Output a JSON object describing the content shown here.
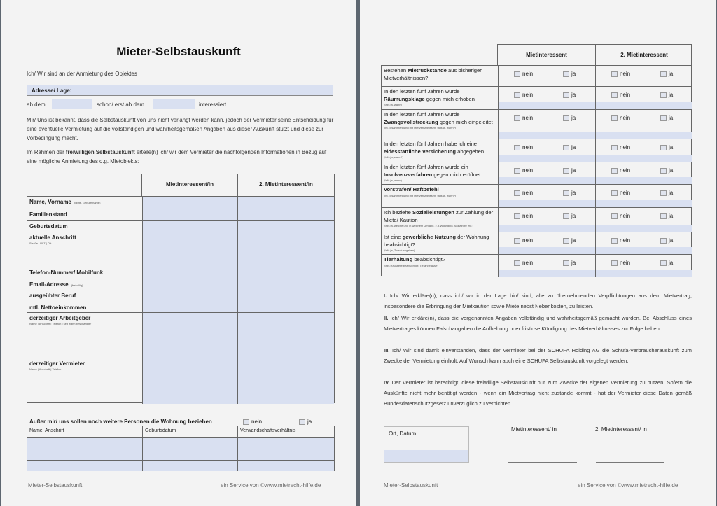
{
  "left": {
    "title": "Mieter-Selbstauskunft",
    "intro": "Ich/ Wir sind an der Anmietung des Objektes",
    "address_label": "Adresse/ Lage:",
    "from_label": "ab dem",
    "already_label": "schon/ erst ab dem",
    "interested_label": "interessiert.",
    "para1": "Mir/ Uns ist bekannt, dass die Selbstauskunft von uns nicht verlangt werden kann, jedoch der Vermieter seine Entscheidung für eine eventuelle Vermietung auf die vollständigen und wahrheitsgemäßen Angaben aus dieser Auskunft stützt und diese zur Vorbedingung macht.",
    "para2_a": "Im Rahmen der ",
    "para2_bold": "freiwilligen Selbstauskunft",
    "para2_b": " erteile(n) ich/ wir dem Vermieter die nachfolgenden Informationen in Bezug auf eine mögliche Anmietung des o.g. Mietobjekts:",
    "table_headers": [
      "Mietinteressent/in",
      "2. Mietinteressent/in"
    ],
    "rows": [
      {
        "label": "Name, Vorname",
        "note": "(ggfls. Geburtsname)"
      },
      {
        "label": "Familienstand",
        "note": ""
      },
      {
        "label": "Geburtsdatum",
        "note": ""
      },
      {
        "label": "aktuelle Anschrift",
        "note": "Straße | PLZ | Ort"
      },
      {
        "label": "Telefon-Nummer/ Mobilfunk",
        "note": ""
      },
      {
        "label": "Email-Adresse",
        "note": "(freiwillig)"
      },
      {
        "label": "ausgeübter Beruf",
        "note": ""
      },
      {
        "label": "mtl. Nettoeinkommen",
        "note": ""
      },
      {
        "label": "derzeitiger Arbeitgeber",
        "note": "Name | Anschrift | Telefon | seit wann beschäftigt?"
      },
      {
        "label": "derzeitiger Vermieter",
        "note": "Name | Anschrift | Telefon"
      }
    ],
    "others_question": "Außer mir/ uns sollen noch weitere Personen die Wohnung beziehen",
    "no": "nein",
    "yes": "ja",
    "others_headers": [
      "Name, Anschrift",
      "Geburtsdatum",
      "Verwandschaftsverhältnis"
    ],
    "footer_left": "Mieter-Selbstauskunft",
    "footer_right": "ein Service von ©www.mietrecht-hilfe.de"
  },
  "right": {
    "table_headers": [
      "Mietinteressent",
      "2. Mietinteressent"
    ],
    "no": "nein",
    "yes": "ja",
    "questions": [
      {
        "pre": "Bestehen ",
        "bold": "Mietrückstände",
        "post": " aus bisherigen Mietverhältnissen?",
        "note": ""
      },
      {
        "pre": "In den letzten fünf Jahren wurde ",
        "bold": "Räumungsklage",
        "post": " gegen mich erhoben",
        "note": "(falls ja, wann)"
      },
      {
        "pre": "In den letzten fünf Jahren wurde ",
        "bold": "Zwangsvollstreckung",
        "post": " gegen mich eingeleitet",
        "note": "(im Zusammenhang mit Mietverhältnissen; falls ja, wann?)"
      },
      {
        "pre": "In den letzten fünf Jahren habe ich eine ",
        "bold": "eidesstattliche Versicherung",
        "post": " abgegeben",
        "note": "(falls ja, wann?)"
      },
      {
        "pre": "In den letzten fünf Jahren wurde ein ",
        "bold": "Insolvenzverfahren",
        "post": " gegen mich eröffnet",
        "note": "(falls ja, wann)"
      },
      {
        "pre": "",
        "bold": "Vorstrafen/ Haftbefehl",
        "post": "",
        "note": "(im Zusammenhang mit Mietverhältnissen; falls ja, wann?)"
      },
      {
        "pre": "Ich beziehe ",
        "bold": "Sozialleistungen",
        "post": " zur Zahlung der Miete/ Kaution",
        "note": "(falls ja, welche und in welchem Umfang, z.B Wohngeld, Sozialhilfe etc.)"
      },
      {
        "pre": "Ist eine ",
        "bold": "gewerbliche Nutzung",
        "post": " der Wohnung beabsichtigt?",
        "note": "(falls ja, Zweck angeben)"
      },
      {
        "pre": "",
        "bold": "Tierhaltung",
        "post": " beabsichtigt?",
        "note": "(falls Haustiere beabsichtigt: Tierart/ Rasse)"
      }
    ],
    "declarations": [
      {
        "num": "I.",
        "text": " Ich/ Wir erkläre(n), dass ich/ wir in der Lage bin/ sind, alle zu übernehmenden Verpflichtungen aus dem Mietvertrag, insbesondere die Erbringung der Mietkaution sowie Miete nebst Nebenkosten, zu leisten."
      },
      {
        "num": "II.",
        "text": " Ich/ Wir erkläre(n), dass die vorgenannten Angaben vollständig und wahrheitsgemäß gemacht wurden. Bei Abschluss eines Mietvertrages können Falschangaben die Aufhebung oder fristlose Kündigung des Mietverhältnisses zur Folge haben."
      },
      {
        "num": "III.",
        "text": " Ich/ Wir sind damit einverstanden, dass der Vermieter bei der SCHUFA Holding AG die Schufa-Verbraucherauskunft zum Zwecke der Vermietung einholt. Auf Wunsch kann auch eine SCHUFA Selbstauskunft vorgelegt werden."
      },
      {
        "num": "IV.",
        "text": " Der Vermieter ist berechtigt, diese freiwillige Selbstauskunft nur zum Zwecke der eigenen Vermietung zu nutzen. Sofern die Auskünfte nicht mehr benötigt werden - wenn ein Mietvertrag nicht zustande kommt - hat der Vermieter diese Daten gemäß Bundesdatenschutzgesetz unverzüglich zu vernichten."
      }
    ],
    "place_date": "Ort, Datum",
    "sign1": "Mietinteressent/ in",
    "sign2": "2. Mietinteressent/ in",
    "footer_left": "Mieter-Selbstauskunft",
    "footer_right": "ein Service von ©www.mietrecht-hilfe.de"
  },
  "colors": {
    "fill": "#d9e0f1",
    "page": "#f3f3f3",
    "background": "#5d6670"
  }
}
